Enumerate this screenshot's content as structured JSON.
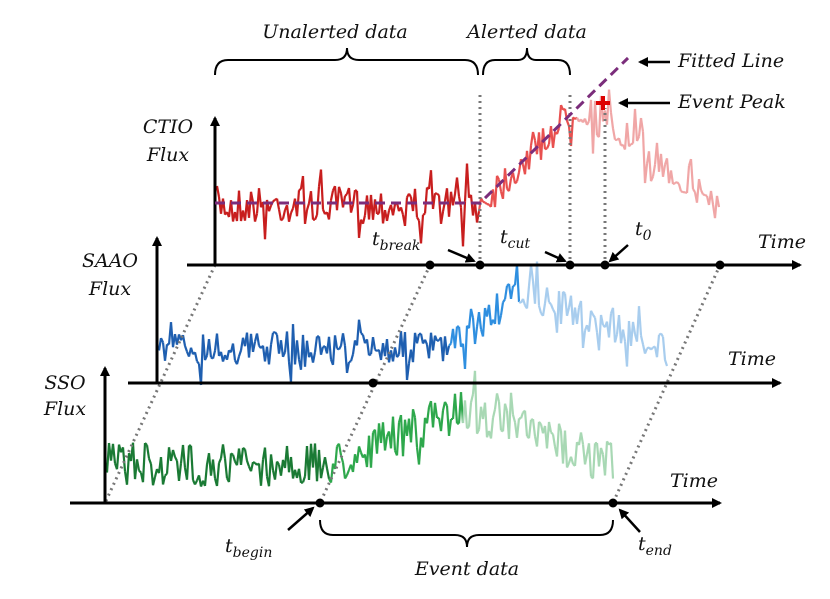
{
  "labels": {
    "unalerted": "Unalerted data",
    "alerted": "Alerted data",
    "fitted_line": "Fitted Line",
    "event_peak": "Event Peak",
    "event_data": "Event data"
  },
  "panels": [
    {
      "name": [
        "CTIO",
        "Flux"
      ],
      "axis": "Time"
    },
    {
      "name": [
        "SAAO",
        "Flux"
      ],
      "axis": "Time"
    },
    {
      "name": [
        "SSO",
        "Flux"
      ],
      "axis": "Time"
    }
  ],
  "times": {
    "break": {
      "base": "t",
      "sub": "break"
    },
    "cut": {
      "base": "t",
      "sub": "cut"
    },
    "zero": {
      "base": "t",
      "sub": "0"
    },
    "begin": {
      "base": "t",
      "sub": "begin"
    },
    "end": {
      "base": "t",
      "sub": "end"
    }
  }
}
